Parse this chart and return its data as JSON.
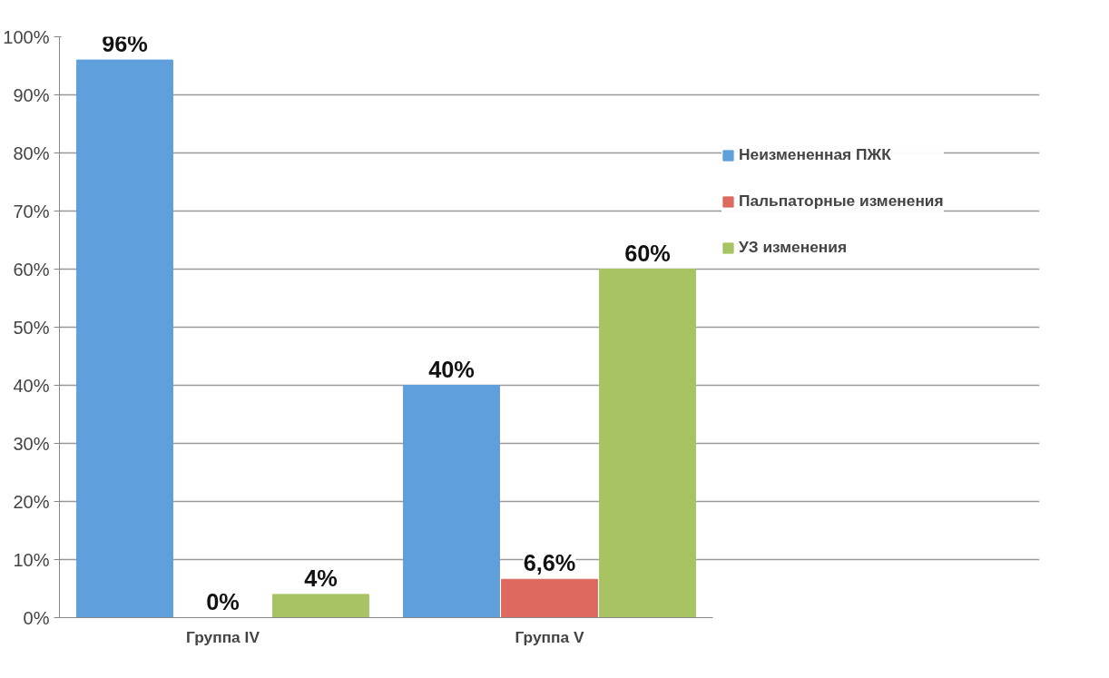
{
  "chart_data": {
    "type": "bar",
    "categories": [
      "Группа IV",
      "Группа V"
    ],
    "series": [
      {
        "name": "Неизмененная ПЖК",
        "color": "#5f9fdc",
        "values": [
          96,
          40
        ],
        "value_labels": [
          "96%",
          "40%"
        ]
      },
      {
        "name": "Пальпаторные изменения",
        "color": "#dc6a5e",
        "values": [
          0,
          6.6
        ],
        "value_labels": [
          "0%",
          "6,6%"
        ]
      },
      {
        "name": "УЗ изменения",
        "color": "#a8c462",
        "values": [
          4,
          60
        ],
        "value_labels": [
          "4%",
          "60%"
        ]
      }
    ],
    "ylim": [
      0,
      100
    ],
    "yticks": [
      {
        "value": 0,
        "label": "0%"
      },
      {
        "value": 10,
        "label": "10%"
      },
      {
        "value": 20,
        "label": "20%"
      },
      {
        "value": 30,
        "label": "30%"
      },
      {
        "value": 40,
        "label": "40%"
      },
      {
        "value": 50,
        "label": "50%"
      },
      {
        "value": 60,
        "label": "60%"
      },
      {
        "value": 70,
        "label": "70%"
      },
      {
        "value": 80,
        "label": "80%"
      },
      {
        "value": 90,
        "label": "90%"
      },
      {
        "value": 100,
        "label": "100%"
      }
    ],
    "grid": "y",
    "legend": "right"
  }
}
